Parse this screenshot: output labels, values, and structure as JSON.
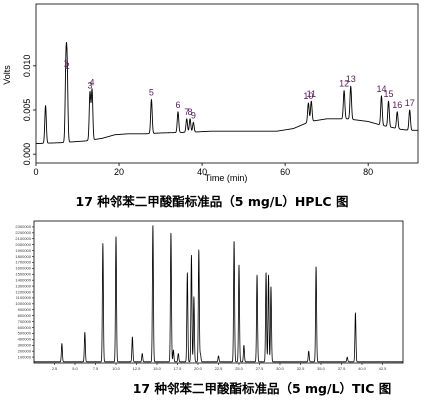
{
  "chart_data": [
    {
      "type": "line",
      "caption": "17 种邻苯二甲酸酯标准品（5 mg/L）HPLC 图",
      "xlabel": "Time (min)",
      "ylabel": "Volts",
      "xlim": [
        0,
        92
      ],
      "ylim": [
        -0.001,
        0.017
      ],
      "x_ticks": [
        0,
        20,
        40,
        60,
        80
      ],
      "y_ticks": [
        0.0,
        0.005,
        0.01
      ],
      "y_tick_labels": [
        "0.000",
        "0.005",
        "0.010"
      ],
      "baseline": [
        [
          0,
          0.0012
        ],
        [
          6,
          0.0013
        ],
        [
          12,
          0.0015
        ],
        [
          16,
          0.0018
        ],
        [
          19,
          0.0022
        ],
        [
          22,
          0.0023
        ],
        [
          26,
          0.0023
        ],
        [
          30,
          0.0024
        ],
        [
          38,
          0.0025
        ],
        [
          42,
          0.0026
        ],
        [
          50,
          0.0026
        ],
        [
          58,
          0.0026
        ],
        [
          62,
          0.0029
        ],
        [
          64,
          0.0033
        ],
        [
          66,
          0.0037
        ],
        [
          70,
          0.004
        ],
        [
          75,
          0.004
        ],
        [
          80,
          0.0037
        ],
        [
          83,
          0.0033
        ],
        [
          86,
          0.003
        ],
        [
          88,
          0.0028
        ],
        [
          90,
          0.0027
        ],
        [
          92,
          0.0027
        ]
      ],
      "peaks": [
        {
          "label": "",
          "x": 2.3,
          "y": 0.0055
        },
        {
          "label": "1",
          "x": 7.2,
          "y": 0.0095
        },
        {
          "label": "2",
          "x": 7.5,
          "y": 0.0092
        },
        {
          "label": "3",
          "x": 13.0,
          "y": 0.007
        },
        {
          "label": "4",
          "x": 13.5,
          "y": 0.0073
        },
        {
          "label": "5",
          "x": 27.8,
          "y": 0.0062
        },
        {
          "label": "6",
          "x": 34.2,
          "y": 0.0048
        },
        {
          "label": "7",
          "x": 36.3,
          "y": 0.004
        },
        {
          "label": "8",
          "x": 37.1,
          "y": 0.004
        },
        {
          "label": "9",
          "x": 37.9,
          "y": 0.0036
        },
        {
          "label": "10",
          "x": 65.6,
          "y": 0.0058
        },
        {
          "label": "11",
          "x": 66.3,
          "y": 0.006
        },
        {
          "label": "12",
          "x": 74.2,
          "y": 0.0072
        },
        {
          "label": "13",
          "x": 75.8,
          "y": 0.0077
        },
        {
          "label": "14",
          "x": 83.2,
          "y": 0.0066
        },
        {
          "label": "15",
          "x": 84.9,
          "y": 0.006
        },
        {
          "label": "16",
          "x": 87.0,
          "y": 0.0048
        },
        {
          "label": "17",
          "x": 90.0,
          "y": 0.005
        }
      ],
      "colors": {
        "trace": "#000000",
        "label": "#5a1a5a"
      }
    },
    {
      "type": "line",
      "caption": "17 种邻苯二甲酸酯标准品（5 mg/L）TIC 图",
      "xlim": [
        0,
        45
      ],
      "ylim": [
        0,
        2400000
      ],
      "x_ticks": [
        2.5,
        5.0,
        7.5,
        10.0,
        12.5,
        15.0,
        17.5,
        20.0,
        22.5,
        25.0,
        27.5,
        30.0,
        32.5,
        35.0,
        37.5,
        40.0,
        42.5
      ],
      "y_ticks": [
        100000,
        200000,
        300000,
        400000,
        500000,
        600000,
        700000,
        800000,
        900000,
        1000000,
        1100000,
        1200000,
        1300000,
        1400000,
        1500000,
        1600000,
        1700000,
        1800000,
        1900000,
        2000000,
        2100000,
        2200000,
        2300000
      ],
      "peaks": [
        {
          "x": 3.4,
          "y": 330000
        },
        {
          "x": 6.2,
          "y": 520000
        },
        {
          "x": 8.4,
          "y": 2020000
        },
        {
          "x": 10.0,
          "y": 2140000
        },
        {
          "x": 12.0,
          "y": 440000
        },
        {
          "x": 13.2,
          "y": 160000
        },
        {
          "x": 14.5,
          "y": 2330000
        },
        {
          "x": 16.7,
          "y": 2200000
        },
        {
          "x": 17.0,
          "y": 220000
        },
        {
          "x": 17.6,
          "y": 160000
        },
        {
          "x": 18.7,
          "y": 1530000
        },
        {
          "x": 19.2,
          "y": 1820000
        },
        {
          "x": 19.5,
          "y": 1120000
        },
        {
          "x": 20.1,
          "y": 1910000
        },
        {
          "x": 20.3,
          "y": 150000
        },
        {
          "x": 22.5,
          "y": 120000
        },
        {
          "x": 24.4,
          "y": 2060000
        },
        {
          "x": 25.0,
          "y": 1660000
        },
        {
          "x": 25.6,
          "y": 300000
        },
        {
          "x": 27.2,
          "y": 1490000
        },
        {
          "x": 28.3,
          "y": 1530000
        },
        {
          "x": 28.6,
          "y": 1490000
        },
        {
          "x": 28.9,
          "y": 1290000
        },
        {
          "x": 33.5,
          "y": 200000
        },
        {
          "x": 34.4,
          "y": 1630000
        },
        {
          "x": 38.2,
          "y": 100000
        },
        {
          "x": 39.2,
          "y": 850000
        }
      ],
      "colors": {
        "trace": "#000000"
      }
    }
  ]
}
